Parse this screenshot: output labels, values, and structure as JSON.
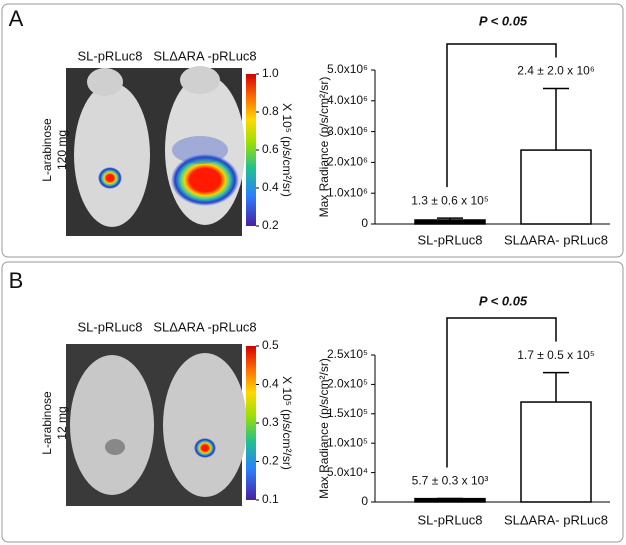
{
  "chart_data": [
    {
      "type": "bar",
      "panel": "A",
      "image_labels": [
        "SL-pRLuc8",
        "SLΔARA -pRLuc8"
      ],
      "side_label": [
        "L-arabinose",
        "120 mg"
      ],
      "colorbar": {
        "label": "X 10⁵ (p/s/cm²/sr)",
        "lim": [
          0.2,
          1.0
        ],
        "ticks": [
          {
            "value": 1.0,
            "label": "1.0"
          },
          0.8,
          0.6,
          0.4,
          0.2
        ]
      },
      "annotation": "P < 0.05",
      "ylabel": "Max Radiance (p/s/cm²/sr)",
      "categories": [
        "SL-pRLuc8",
        "SLΔARA- pRLuc8"
      ],
      "values": [
        130000,
        2400000
      ],
      "errors": [
        60000,
        2000000
      ],
      "value_labels": [
        "1.3 ± 0.6 x 10⁵",
        "2.4 ± 2.0 x 10⁶"
      ],
      "colors": [
        "#000000",
        "#ffffff"
      ],
      "ylim": [
        0,
        5000000
      ],
      "yticks": [
        0,
        {
          "value": 1000000,
          "label": "1.0x10⁶"
        },
        {
          "value": 2000000,
          "label": "2.0x10⁶"
        },
        {
          "value": 3000000,
          "label": "3.0x10⁶"
        },
        {
          "value": 4000000,
          "label": "4.0x10⁶"
        },
        {
          "value": 5000000,
          "label": "5.0x10⁶"
        }
      ]
    },
    {
      "type": "bar",
      "panel": "B",
      "image_labels": [
        "SL-pRLuc8",
        "SLΔARA -pRLuc8"
      ],
      "side_label": [
        "L-arabinose",
        "12 mg"
      ],
      "colorbar": {
        "label": "X 10⁵ (p/s/cm²/sr)",
        "lim": [
          0.1,
          0.5
        ],
        "ticks": [
          0.5,
          0.4,
          0.3,
          0.2,
          0.1
        ]
      },
      "annotation": "P < 0.05",
      "ylabel": "Max Radiance (p/s/cm²/sr)",
      "categories": [
        "SL-pRLuc8",
        "SLΔARA- pRLuc8"
      ],
      "values": [
        5700,
        170000
      ],
      "errors": [
        300,
        50000
      ],
      "value_labels": [
        "5.7 ± 0.3 x 10³",
        "1.7 ± 0.5 x 10⁵"
      ],
      "colors": [
        "#000000",
        "#ffffff"
      ],
      "ylim": [
        0,
        250000
      ],
      "yticks": [
        0,
        {
          "value": 50000,
          "label": "5.0x10⁴"
        },
        {
          "value": 100000,
          "label": "1.0x10⁵"
        },
        {
          "value": 150000,
          "label": "1.5x10⁵"
        },
        {
          "value": 200000,
          "label": "2.0x10⁵"
        },
        {
          "value": 250000,
          "label": "2.5x10⁵"
        }
      ]
    }
  ]
}
